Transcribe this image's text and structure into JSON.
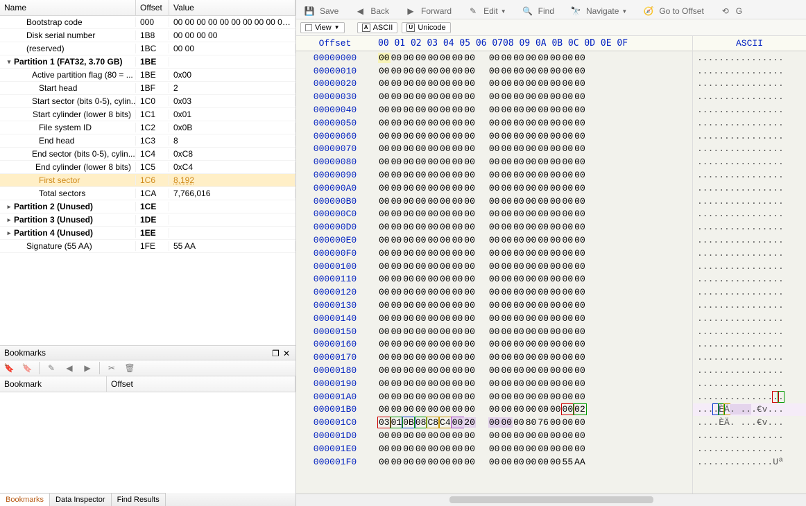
{
  "tree": {
    "headers": [
      "Name",
      "Offset",
      "Value"
    ],
    "rows": [
      {
        "indent": 1,
        "toggle": "",
        "name": "Bootstrap code",
        "offset": "000",
        "value": "00 00 00 00 00 00 00 00 00 00 0...",
        "bold": false
      },
      {
        "indent": 1,
        "toggle": "",
        "name": "Disk serial number",
        "offset": "1B8",
        "value": "00 00 00 00",
        "bold": false
      },
      {
        "indent": 1,
        "toggle": "",
        "name": "(reserved)",
        "offset": "1BC",
        "value": "00 00",
        "bold": false
      },
      {
        "indent": 0,
        "toggle": "▾",
        "name": "Partition 1 (FAT32, 3.70 GB)",
        "offset": "1BE",
        "value": "",
        "bold": true
      },
      {
        "indent": 2,
        "toggle": "",
        "name": "Active partition flag (80 = ...",
        "offset": "1BE",
        "value": "0x00",
        "bold": false
      },
      {
        "indent": 2,
        "toggle": "",
        "name": "Start head",
        "offset": "1BF",
        "value": "2",
        "bold": false
      },
      {
        "indent": 2,
        "toggle": "",
        "name": "Start sector (bits 0-5), cylin...",
        "offset": "1C0",
        "value": "0x03",
        "bold": false
      },
      {
        "indent": 2,
        "toggle": "",
        "name": "Start cylinder (lower 8 bits)",
        "offset": "1C1",
        "value": "0x01",
        "bold": false
      },
      {
        "indent": 2,
        "toggle": "",
        "name": "File system ID",
        "offset": "1C2",
        "value": "0x0B",
        "bold": false
      },
      {
        "indent": 2,
        "toggle": "",
        "name": "End head",
        "offset": "1C3",
        "value": "8",
        "bold": false
      },
      {
        "indent": 2,
        "toggle": "",
        "name": "End sector (bits 0-5), cylin...",
        "offset": "1C4",
        "value": "0xC8",
        "bold": false
      },
      {
        "indent": 2,
        "toggle": "",
        "name": "End cylinder (lower 8 bits)",
        "offset": "1C5",
        "value": "0xC4",
        "bold": false
      },
      {
        "indent": 2,
        "toggle": "",
        "name": "First sector",
        "offset": "1C6",
        "value": "8,192",
        "bold": false,
        "hl": true
      },
      {
        "indent": 2,
        "toggle": "",
        "name": "Total sectors",
        "offset": "1CA",
        "value": "7,766,016",
        "bold": false
      },
      {
        "indent": 0,
        "toggle": "▸",
        "name": "Partition 2 (Unused)",
        "offset": "1CE",
        "value": "",
        "bold": true
      },
      {
        "indent": 0,
        "toggle": "▸",
        "name": "Partition 3 (Unused)",
        "offset": "1DE",
        "value": "",
        "bold": true
      },
      {
        "indent": 0,
        "toggle": "▸",
        "name": "Partition 4 (Unused)",
        "offset": "1EE",
        "value": "",
        "bold": true
      },
      {
        "indent": 1,
        "toggle": "",
        "name": "Signature (55 AA)",
        "offset": "1FE",
        "value": "55 AA",
        "bold": false
      }
    ]
  },
  "bookmarks": {
    "title": "Bookmarks",
    "headers": [
      "Bookmark",
      "Offset"
    ]
  },
  "bottom_tabs": [
    "Bookmarks",
    "Data Inspector",
    "Find Results"
  ],
  "toolbar": [
    {
      "name": "save",
      "label": "Save",
      "icon": "💾"
    },
    {
      "name": "back",
      "label": "Back",
      "icon": "◀"
    },
    {
      "name": "forward",
      "label": "Forward",
      "icon": "▶"
    },
    {
      "name": "edit",
      "label": "Edit",
      "icon": "✎",
      "dd": true
    },
    {
      "name": "find",
      "label": "Find",
      "icon": "🔍"
    },
    {
      "name": "navigate",
      "label": "Navigate",
      "icon": "🔭",
      "dd": true
    },
    {
      "name": "goto",
      "label": "Go to Offset",
      "icon": "🧭"
    },
    {
      "name": "gx",
      "label": "G",
      "icon": "⟲"
    }
  ],
  "viewbar": {
    "view": "View",
    "ascii": "ASCII",
    "unicode": "Unicode"
  },
  "hex": {
    "offset_header": "Offset",
    "byte_header_a": "00 01 02 03 04 05 06 07",
    "byte_header_b": "08 09 0A 0B 0C 0D 0E 0F",
    "ascii_header": "ASCII",
    "offsets": [
      "00000000",
      "00000010",
      "00000020",
      "00000030",
      "00000040",
      "00000050",
      "00000060",
      "00000070",
      "00000080",
      "00000090",
      "000000A0",
      "000000B0",
      "000000C0",
      "000000D0",
      "000000E0",
      "000000F0",
      "00000100",
      "00000110",
      "00000120",
      "00000130",
      "00000140",
      "00000150",
      "00000160",
      "00000170",
      "00000180",
      "00000190",
      "000001A0",
      "000001B0",
      "000001C0",
      "000001D0",
      "000001E0",
      "000001F0"
    ],
    "bytes": [
      [
        "00",
        "00",
        "00",
        "00",
        "00",
        "00",
        "00",
        "00",
        "00",
        "00",
        "00",
        "00",
        "00",
        "00",
        "00",
        "00"
      ],
      [
        "00",
        "00",
        "00",
        "00",
        "00",
        "00",
        "00",
        "00",
        "00",
        "00",
        "00",
        "00",
        "00",
        "00",
        "00",
        "00"
      ],
      [
        "00",
        "00",
        "00",
        "00",
        "00",
        "00",
        "00",
        "00",
        "00",
        "00",
        "00",
        "00",
        "00",
        "00",
        "00",
        "00"
      ],
      [
        "00",
        "00",
        "00",
        "00",
        "00",
        "00",
        "00",
        "00",
        "00",
        "00",
        "00",
        "00",
        "00",
        "00",
        "00",
        "00"
      ],
      [
        "00",
        "00",
        "00",
        "00",
        "00",
        "00",
        "00",
        "00",
        "00",
        "00",
        "00",
        "00",
        "00",
        "00",
        "00",
        "00"
      ],
      [
        "00",
        "00",
        "00",
        "00",
        "00",
        "00",
        "00",
        "00",
        "00",
        "00",
        "00",
        "00",
        "00",
        "00",
        "00",
        "00"
      ],
      [
        "00",
        "00",
        "00",
        "00",
        "00",
        "00",
        "00",
        "00",
        "00",
        "00",
        "00",
        "00",
        "00",
        "00",
        "00",
        "00"
      ],
      [
        "00",
        "00",
        "00",
        "00",
        "00",
        "00",
        "00",
        "00",
        "00",
        "00",
        "00",
        "00",
        "00",
        "00",
        "00",
        "00"
      ],
      [
        "00",
        "00",
        "00",
        "00",
        "00",
        "00",
        "00",
        "00",
        "00",
        "00",
        "00",
        "00",
        "00",
        "00",
        "00",
        "00"
      ],
      [
        "00",
        "00",
        "00",
        "00",
        "00",
        "00",
        "00",
        "00",
        "00",
        "00",
        "00",
        "00",
        "00",
        "00",
        "00",
        "00"
      ],
      [
        "00",
        "00",
        "00",
        "00",
        "00",
        "00",
        "00",
        "00",
        "00",
        "00",
        "00",
        "00",
        "00",
        "00",
        "00",
        "00"
      ],
      [
        "00",
        "00",
        "00",
        "00",
        "00",
        "00",
        "00",
        "00",
        "00",
        "00",
        "00",
        "00",
        "00",
        "00",
        "00",
        "00"
      ],
      [
        "00",
        "00",
        "00",
        "00",
        "00",
        "00",
        "00",
        "00",
        "00",
        "00",
        "00",
        "00",
        "00",
        "00",
        "00",
        "00"
      ],
      [
        "00",
        "00",
        "00",
        "00",
        "00",
        "00",
        "00",
        "00",
        "00",
        "00",
        "00",
        "00",
        "00",
        "00",
        "00",
        "00"
      ],
      [
        "00",
        "00",
        "00",
        "00",
        "00",
        "00",
        "00",
        "00",
        "00",
        "00",
        "00",
        "00",
        "00",
        "00",
        "00",
        "00"
      ],
      [
        "00",
        "00",
        "00",
        "00",
        "00",
        "00",
        "00",
        "00",
        "00",
        "00",
        "00",
        "00",
        "00",
        "00",
        "00",
        "00"
      ],
      [
        "00",
        "00",
        "00",
        "00",
        "00",
        "00",
        "00",
        "00",
        "00",
        "00",
        "00",
        "00",
        "00",
        "00",
        "00",
        "00"
      ],
      [
        "00",
        "00",
        "00",
        "00",
        "00",
        "00",
        "00",
        "00",
        "00",
        "00",
        "00",
        "00",
        "00",
        "00",
        "00",
        "00"
      ],
      [
        "00",
        "00",
        "00",
        "00",
        "00",
        "00",
        "00",
        "00",
        "00",
        "00",
        "00",
        "00",
        "00",
        "00",
        "00",
        "00"
      ],
      [
        "00",
        "00",
        "00",
        "00",
        "00",
        "00",
        "00",
        "00",
        "00",
        "00",
        "00",
        "00",
        "00",
        "00",
        "00",
        "00"
      ],
      [
        "00",
        "00",
        "00",
        "00",
        "00",
        "00",
        "00",
        "00",
        "00",
        "00",
        "00",
        "00",
        "00",
        "00",
        "00",
        "00"
      ],
      [
        "00",
        "00",
        "00",
        "00",
        "00",
        "00",
        "00",
        "00",
        "00",
        "00",
        "00",
        "00",
        "00",
        "00",
        "00",
        "00"
      ],
      [
        "00",
        "00",
        "00",
        "00",
        "00",
        "00",
        "00",
        "00",
        "00",
        "00",
        "00",
        "00",
        "00",
        "00",
        "00",
        "00"
      ],
      [
        "00",
        "00",
        "00",
        "00",
        "00",
        "00",
        "00",
        "00",
        "00",
        "00",
        "00",
        "00",
        "00",
        "00",
        "00",
        "00"
      ],
      [
        "00",
        "00",
        "00",
        "00",
        "00",
        "00",
        "00",
        "00",
        "00",
        "00",
        "00",
        "00",
        "00",
        "00",
        "00",
        "00"
      ],
      [
        "00",
        "00",
        "00",
        "00",
        "00",
        "00",
        "00",
        "00",
        "00",
        "00",
        "00",
        "00",
        "00",
        "00",
        "00",
        "00"
      ],
      [
        "00",
        "00",
        "00",
        "00",
        "00",
        "00",
        "00",
        "00",
        "00",
        "00",
        "00",
        "00",
        "00",
        "00",
        "00",
        "00"
      ],
      [
        "00",
        "00",
        "00",
        "00",
        "00",
        "00",
        "00",
        "00",
        "00",
        "00",
        "00",
        "00",
        "00",
        "00",
        "00",
        "02"
      ],
      [
        "03",
        "01",
        "0B",
        "08",
        "C8",
        "C4",
        "00",
        "20",
        "00",
        "00",
        "00",
        "80",
        "76",
        "00",
        "00",
        "00"
      ],
      [
        "00",
        "00",
        "00",
        "00",
        "00",
        "00",
        "00",
        "00",
        "00",
        "00",
        "00",
        "00",
        "00",
        "00",
        "00",
        "00"
      ],
      [
        "00",
        "00",
        "00",
        "00",
        "00",
        "00",
        "00",
        "00",
        "00",
        "00",
        "00",
        "00",
        "00",
        "00",
        "00",
        "00"
      ],
      [
        "00",
        "00",
        "00",
        "00",
        "00",
        "00",
        "00",
        "00",
        "00",
        "00",
        "00",
        "00",
        "00",
        "00",
        "55",
        "AA"
      ]
    ],
    "ascii": [
      "................",
      "................",
      "................",
      "................",
      "................",
      "................",
      "................",
      "................",
      "................",
      "................",
      "................",
      "................",
      "................",
      "................",
      "................",
      "................",
      "................",
      "................",
      "................",
      "................",
      "................",
      "................",
      "................",
      "................",
      "................",
      "................",
      "................",
      "................",
      "....ÈÄ. ...€v...",
      "................",
      "................",
      "..............Uª"
    ]
  }
}
